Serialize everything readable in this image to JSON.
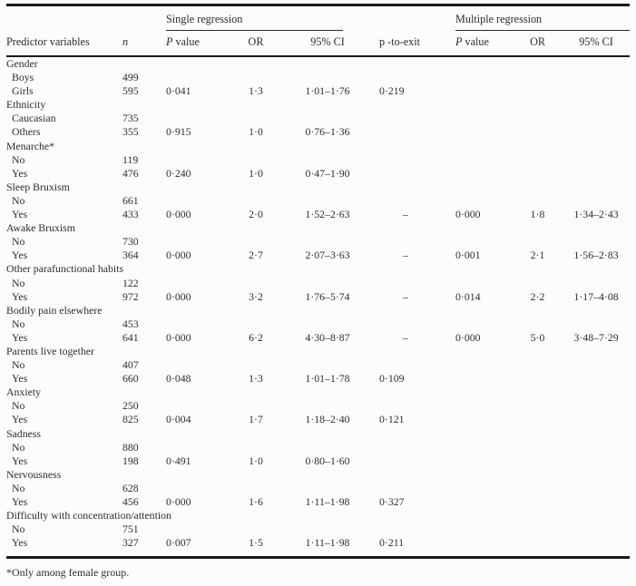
{
  "page": {
    "background": "#fcfcfc",
    "text_color": "#2d2d2d",
    "rule_color": "#1b1b1b"
  },
  "table": {
    "span_headers": {
      "single": "Single regression",
      "multiple": "Multiple regression"
    },
    "header": {
      "predictor": "Predictor variables",
      "n": "n",
      "p_italic": "P",
      "p_rest": "value",
      "or": "OR",
      "ci": "95% CI",
      "p_to_exit": "p -to-exit"
    },
    "groups": [
      {
        "label": "Gender",
        "rows": [
          {
            "label": "Boys",
            "n": "499",
            "s_p": "",
            "s_or": "",
            "s_ci": "",
            "p_exit": "",
            "m_p": "",
            "m_or": "",
            "m_ci": ""
          },
          {
            "label": "Girls",
            "n": "595",
            "s_p": "0·041",
            "s_or": "1·3",
            "s_ci": "1·01–1·76",
            "p_exit": "0·219",
            "m_p": "",
            "m_or": "",
            "m_ci": ""
          }
        ]
      },
      {
        "label": "Ethnicity",
        "rows": [
          {
            "label": "Caucasian",
            "n": "735",
            "s_p": "",
            "s_or": "",
            "s_ci": "",
            "p_exit": "",
            "m_p": "",
            "m_or": "",
            "m_ci": ""
          },
          {
            "label": "Others",
            "n": "355",
            "s_p": "0·915",
            "s_or": "1·0",
            "s_ci": "0·76–1·36",
            "p_exit": "",
            "m_p": "",
            "m_or": "",
            "m_ci": ""
          }
        ]
      },
      {
        "label": "Menarche*",
        "rows": [
          {
            "label": "No",
            "n": "119",
            "s_p": "",
            "s_or": "",
            "s_ci": "",
            "p_exit": "",
            "m_p": "",
            "m_or": "",
            "m_ci": ""
          },
          {
            "label": "Yes",
            "n": "476",
            "s_p": "0·240",
            "s_or": "1·0",
            "s_ci": "0·47–1·90",
            "p_exit": "",
            "m_p": "",
            "m_or": "",
            "m_ci": ""
          }
        ]
      },
      {
        "label": "Sleep Bruxism",
        "rows": [
          {
            "label": "No",
            "n": "661",
            "s_p": "",
            "s_or": "",
            "s_ci": "",
            "p_exit": "",
            "m_p": "",
            "m_or": "",
            "m_ci": ""
          },
          {
            "label": "Yes",
            "n": "433",
            "s_p": "0·000",
            "s_or": "2·0",
            "s_ci": "1·52–2·63",
            "p_exit": "–",
            "m_p": "0·000",
            "m_or": "1·8",
            "m_ci": "1·34–2·43"
          }
        ]
      },
      {
        "label": "Awake Bruxism",
        "rows": [
          {
            "label": "No",
            "n": "730",
            "s_p": "",
            "s_or": "",
            "s_ci": "",
            "p_exit": "",
            "m_p": "",
            "m_or": "",
            "m_ci": ""
          },
          {
            "label": "Yes",
            "n": "364",
            "s_p": "0·000",
            "s_or": "2·7",
            "s_ci": "2·07–3·63",
            "p_exit": "–",
            "m_p": "0·001",
            "m_or": "2·1",
            "m_ci": "1·56–2·83"
          }
        ]
      },
      {
        "label": "Other parafunctional habits",
        "rows": [
          {
            "label": "No",
            "n": "122",
            "s_p": "",
            "s_or": "",
            "s_ci": "",
            "p_exit": "",
            "m_p": "",
            "m_or": "",
            "m_ci": ""
          },
          {
            "label": "Yes",
            "n": "972",
            "s_p": "0·000",
            "s_or": "3·2",
            "s_ci": "1·76–5·74",
            "p_exit": "–",
            "m_p": "0·014",
            "m_or": "2·2",
            "m_ci": "1·17–4·08"
          }
        ]
      },
      {
        "label": "Bodily pain elsewhere",
        "rows": [
          {
            "label": "No",
            "n": "453",
            "s_p": "",
            "s_or": "",
            "s_ci": "",
            "p_exit": "",
            "m_p": "",
            "m_or": "",
            "m_ci": ""
          },
          {
            "label": "Yes",
            "n": "641",
            "s_p": "0·000",
            "s_or": "6·2",
            "s_ci": "4·30–8·87",
            "p_exit": "–",
            "m_p": "0·000",
            "m_or": "5·0",
            "m_ci": "3·48–7·29"
          }
        ]
      },
      {
        "label": "Parents live together",
        "rows": [
          {
            "label": "No",
            "n": "407",
            "s_p": "",
            "s_or": "",
            "s_ci": "",
            "p_exit": "",
            "m_p": "",
            "m_or": "",
            "m_ci": ""
          },
          {
            "label": "Yes",
            "n": "660",
            "s_p": "0·048",
            "s_or": "1·3",
            "s_ci": "1·01–1·78",
            "p_exit": "0·109",
            "m_p": "",
            "m_or": "",
            "m_ci": ""
          }
        ]
      },
      {
        "label": "Anxiety",
        "rows": [
          {
            "label": "No",
            "n": "250",
            "s_p": "",
            "s_or": "",
            "s_ci": "",
            "p_exit": "",
            "m_p": "",
            "m_or": "",
            "m_ci": ""
          },
          {
            "label": "Yes",
            "n": "825",
            "s_p": "0·004",
            "s_or": "1·7",
            "s_ci": "1·18–2·40",
            "p_exit": "0·121",
            "m_p": "",
            "m_or": "",
            "m_ci": ""
          }
        ]
      },
      {
        "label": "Sadness",
        "rows": [
          {
            "label": "No",
            "n": "880",
            "s_p": "",
            "s_or": "",
            "s_ci": "",
            "p_exit": "",
            "m_p": "",
            "m_or": "",
            "m_ci": ""
          },
          {
            "label": "Yes",
            "n": "198",
            "s_p": "0·491",
            "s_or": "1·0",
            "s_ci": "0·80–1·60",
            "p_exit": "",
            "m_p": "",
            "m_or": "",
            "m_ci": ""
          }
        ]
      },
      {
        "label": "Nervousness",
        "rows": [
          {
            "label": "No",
            "n": "628",
            "s_p": "",
            "s_or": "",
            "s_ci": "",
            "p_exit": "",
            "m_p": "",
            "m_or": "",
            "m_ci": ""
          },
          {
            "label": "Yes",
            "n": "456",
            "s_p": "0·000",
            "s_or": "1·6",
            "s_ci": "1·11–1·98",
            "p_exit": "0·327",
            "m_p": "",
            "m_or": "",
            "m_ci": ""
          }
        ]
      },
      {
        "label": "Difficulty with concentration/attention",
        "rows": [
          {
            "label": "No",
            "n": "751",
            "s_p": "",
            "s_or": "",
            "s_ci": "",
            "p_exit": "",
            "m_p": "",
            "m_or": "",
            "m_ci": ""
          },
          {
            "label": "Yes",
            "n": "327",
            "s_p": "0·007",
            "s_or": "1·5",
            "s_ci": "1·11–1·98",
            "p_exit": "0·211",
            "m_p": "",
            "m_or": "",
            "m_ci": ""
          }
        ]
      }
    ],
    "footnote": "*Only among female group."
  }
}
